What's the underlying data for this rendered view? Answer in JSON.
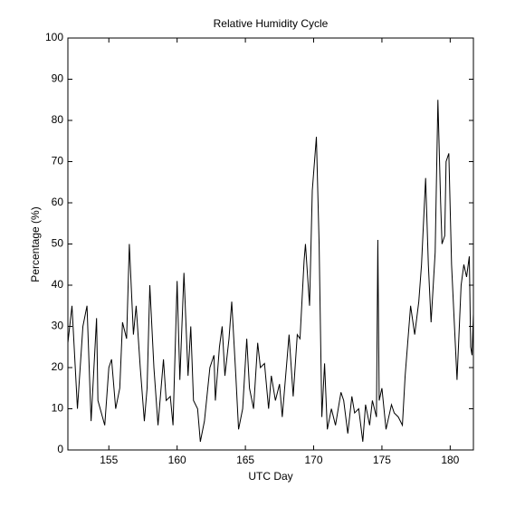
{
  "chart_data": {
    "type": "line",
    "title": "Relative Humidity Cycle",
    "xlabel": "UTC Day",
    "ylabel": "Percentage (%)",
    "color": "#000000",
    "x": [
      152.0,
      152.3,
      152.7,
      153.1,
      153.4,
      153.7,
      154.1,
      154.2,
      154.7,
      155.0,
      155.2,
      155.5,
      155.8,
      156.0,
      156.3,
      156.5,
      156.8,
      157.0,
      157.3,
      157.6,
      157.8,
      158.0,
      158.3,
      158.6,
      159.0,
      159.2,
      159.5,
      159.7,
      160.0,
      160.2,
      160.5,
      160.8,
      161.0,
      161.2,
      161.5,
      161.7,
      162.0,
      162.4,
      162.7,
      162.8,
      163.1,
      163.3,
      163.5,
      163.8,
      164.0,
      164.3,
      164.5,
      164.8,
      165.1,
      165.3,
      165.6,
      165.9,
      166.1,
      166.4,
      166.7,
      166.9,
      167.2,
      167.5,
      167.7,
      168.0,
      168.2,
      168.5,
      168.8,
      169.0,
      169.3,
      169.4,
      169.7,
      169.9,
      170.2,
      170.4,
      170.6,
      170.8,
      171.0,
      171.3,
      171.6,
      172.0,
      172.2,
      172.5,
      172.8,
      173.0,
      173.3,
      173.6,
      173.8,
      174.1,
      174.3,
      174.6,
      174.7,
      174.8,
      175.0,
      175.3,
      175.7,
      175.9,
      176.2,
      176.5,
      176.7,
      177.1,
      177.4,
      177.7,
      177.9,
      178.2,
      178.4,
      178.6,
      178.9,
      179.1,
      179.3,
      179.4,
      179.6,
      179.7,
      179.9,
      180.1,
      180.2,
      180.5,
      180.8,
      181.0,
      181.2,
      181.4,
      181.5,
      181.6,
      181.7
    ],
    "values": [
      26,
      35,
      10,
      30,
      35,
      7,
      32,
      12,
      6,
      20,
      22,
      10,
      15,
      31,
      27,
      50,
      28,
      35,
      20,
      7,
      15,
      40,
      20,
      6,
      22,
      12,
      13,
      6,
      41,
      17,
      43,
      18,
      30,
      12,
      10,
      2,
      7,
      20,
      23,
      12,
      25,
      30,
      18,
      27,
      36,
      18,
      5,
      10,
      27,
      15,
      10,
      26,
      20,
      21,
      10,
      18,
      12,
      16,
      8,
      20,
      28,
      13,
      28,
      27,
      46,
      50,
      35,
      63,
      76,
      50,
      8,
      21,
      5,
      10,
      6,
      14,
      12,
      4,
      13,
      9,
      10,
      2,
      11,
      6,
      12,
      8,
      51,
      12,
      15,
      5,
      11,
      9,
      8,
      6,
      18,
      35,
      28,
      36,
      45,
      66,
      45,
      31,
      48,
      85,
      60,
      50,
      52,
      70,
      72,
      45,
      38,
      17,
      40,
      45,
      42,
      47,
      25,
      23,
      33
    ],
    "xlim": [
      152,
      181.7
    ],
    "ylim": [
      0,
      100
    ],
    "xticks": [
      155,
      160,
      165,
      170,
      175,
      180
    ],
    "yticks": [
      0,
      10,
      20,
      30,
      40,
      50,
      60,
      70,
      80,
      90,
      100
    ]
  }
}
